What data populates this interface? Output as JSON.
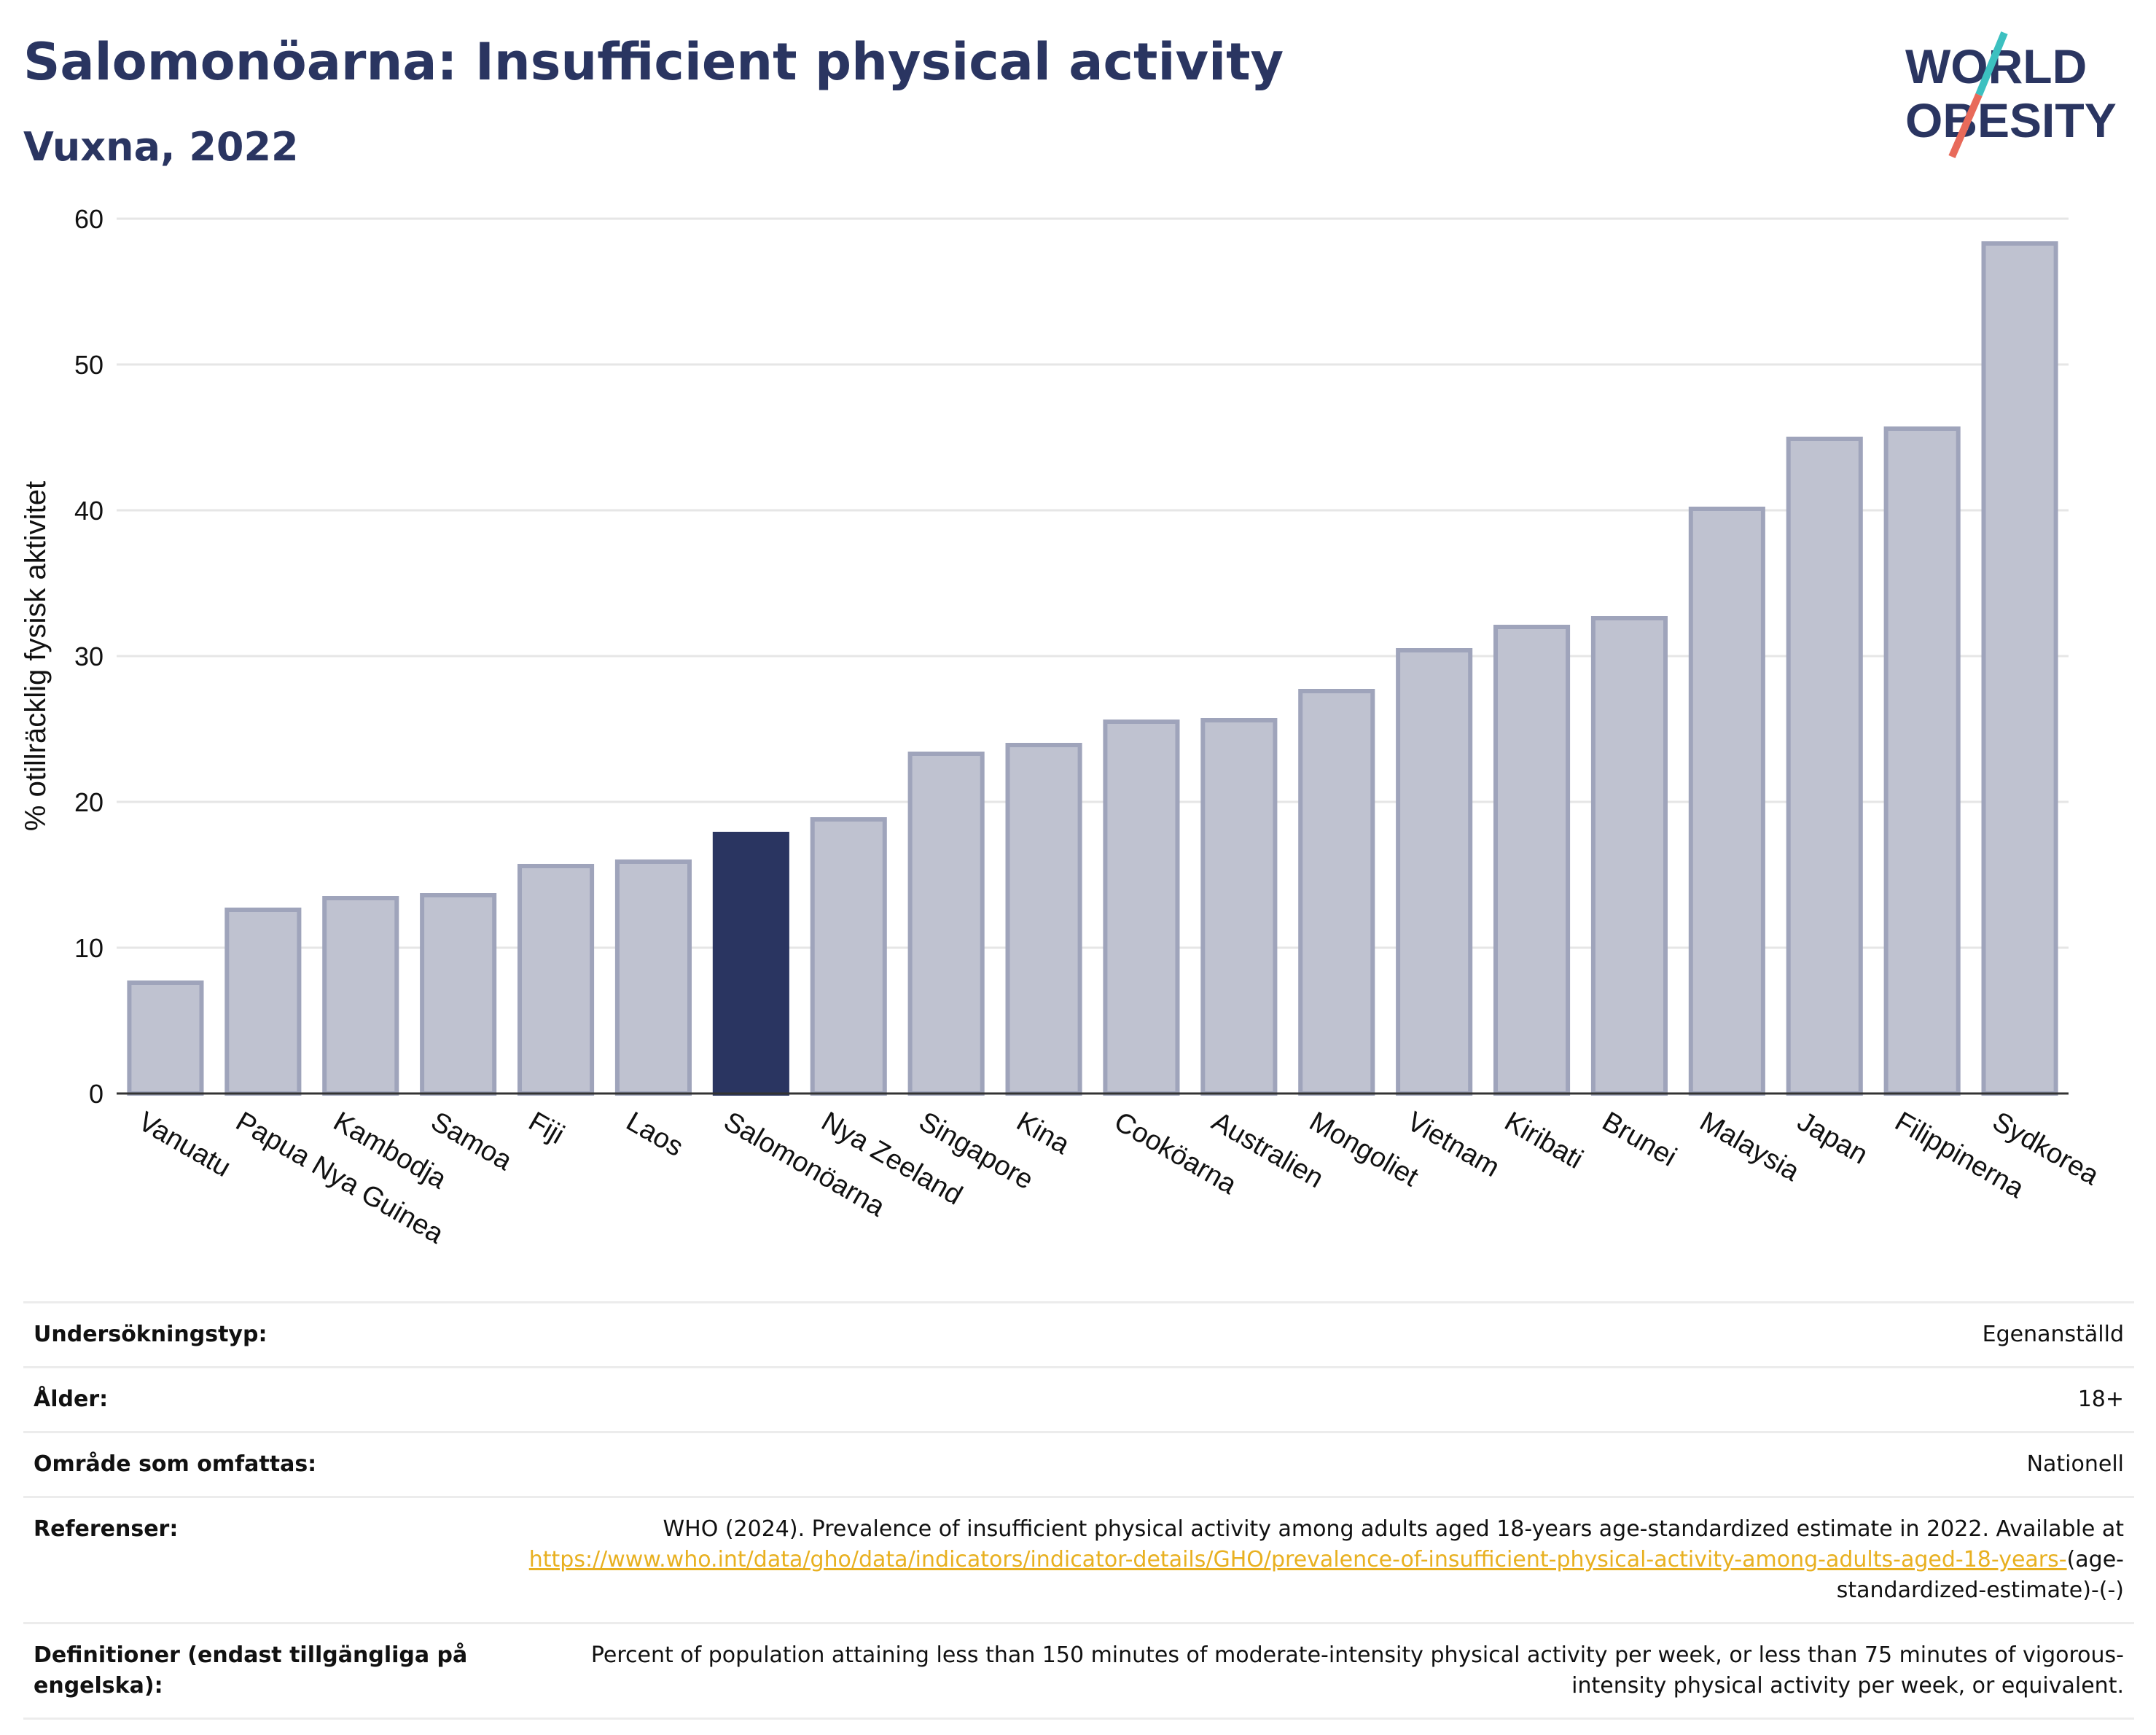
{
  "header": {
    "title": "Salomonöarna: Insufficient physical activity",
    "subtitle": "Vuxna, 2022"
  },
  "logo": {
    "line1": "WORLD",
    "line2": "OBESITY"
  },
  "colors": {
    "highlight": "#2a3561",
    "bar": "#bfc2d0",
    "bar_stroke": "#9fa4bb",
    "link": "#e8b020",
    "logo_slash_top": "#3cc0c0",
    "logo_slash_bottom": "#e86a5a"
  },
  "chart_data": {
    "type": "bar",
    "categories": [
      "Vanuatu",
      "Papua Nya Guinea",
      "Kambodja",
      "Samoa",
      "Fiji",
      "Laos",
      "Salomonöarna",
      "Nya Zeeland",
      "Singapore",
      "Kina",
      "Cooköarna",
      "Australien",
      "Mongoliet",
      "Vietnam",
      "Kiribati",
      "Brunei",
      "Malaysia",
      "Japan",
      "Filippinerna",
      "Sydkorea"
    ],
    "values": [
      7.6,
      12.6,
      13.4,
      13.6,
      15.6,
      15.9,
      17.8,
      18.8,
      23.3,
      23.9,
      25.5,
      25.6,
      27.6,
      30.4,
      32.0,
      32.6,
      40.1,
      44.9,
      45.6,
      58.3
    ],
    "highlight": "Salomonöarna",
    "ylabel": "% otillräcklig fysisk aktivitet",
    "xlabel": "",
    "ylim": [
      0,
      60
    ],
    "yticks": [
      0,
      10,
      20,
      30,
      40,
      50,
      60
    ],
    "grid": true
  },
  "meta": {
    "rows": [
      {
        "key": "Undersökningstyp:",
        "value": "Egenanställd"
      },
      {
        "key": "Ålder:",
        "value": "18+"
      },
      {
        "key": "Område som omfattas:",
        "value": "Nationell"
      }
    ],
    "references": {
      "key": "Referenser:",
      "text": "WHO (2024). Prevalence of insufficient physical activity among adults aged 18-years age-standardized estimate in 2022. Available at",
      "link": "https://www.who.int/data/gho/data/indicators/indicator-details/GHO/prevalence-of-insufficient-physical-activity-among-adults-aged-18-years-",
      "tail": "(age-standardized-estimate)-(-)"
    },
    "definitions": {
      "key": "Definitioner (endast tillgängliga på engelska):",
      "value": "Percent of population attaining less than 150 minutes of moderate-intensity physical activity per week, or less than 75 minutes of vigorous-intensity physical activity per week, or equivalent."
    }
  }
}
